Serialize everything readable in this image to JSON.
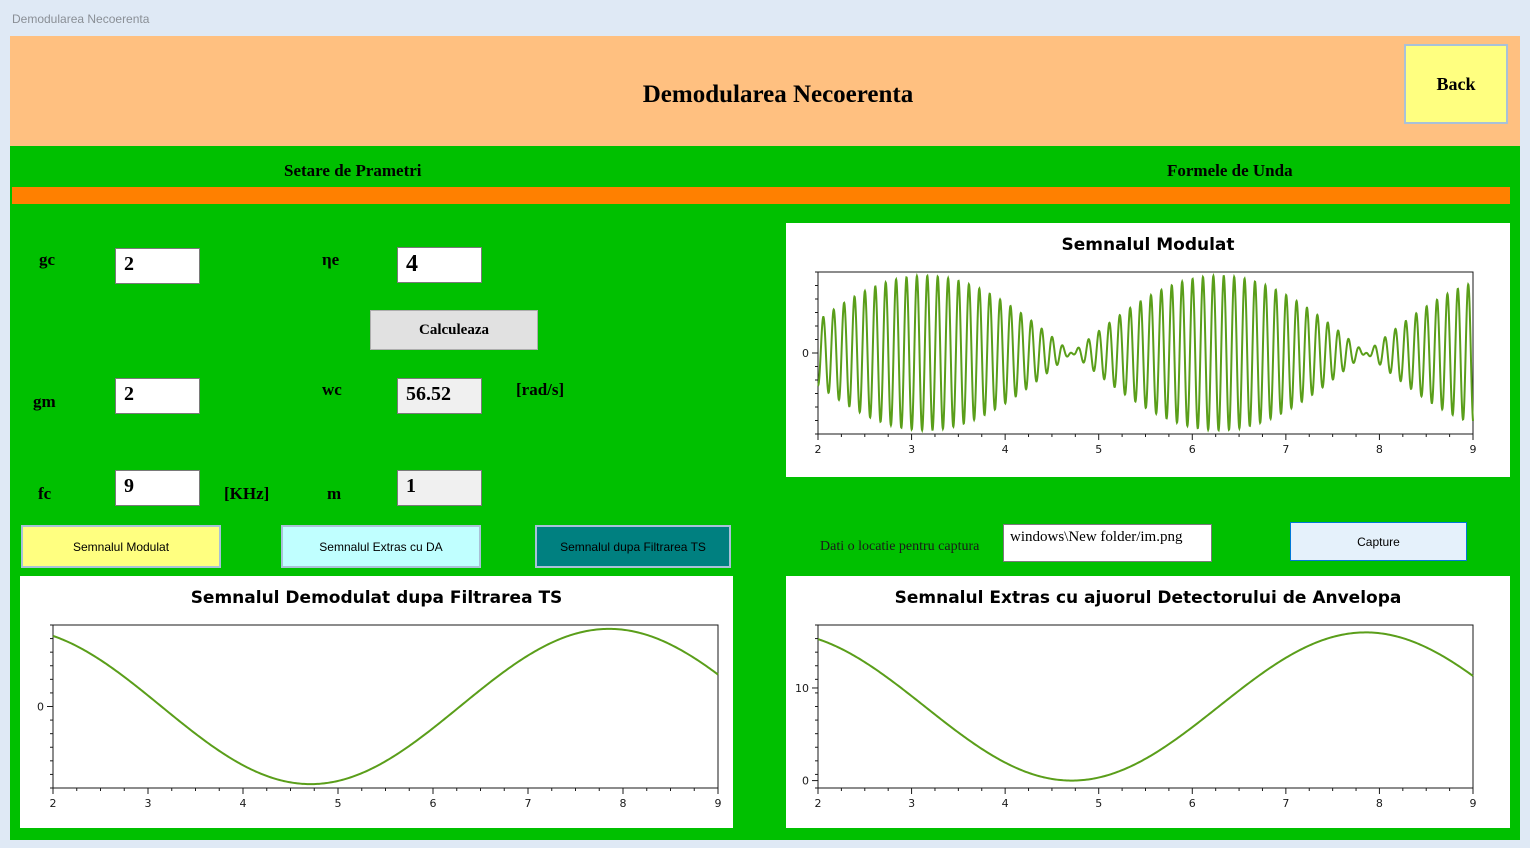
{
  "window": {
    "title": "Demodularea Necoerenta"
  },
  "header": {
    "title": "Demodularea Necoerenta",
    "back_label": "Back"
  },
  "sections": {
    "params": "Setare de Prametri",
    "waves": "Formele de Unda"
  },
  "params": {
    "gc": {
      "label": "gc",
      "value": "2"
    },
    "ne": {
      "label": "ηe",
      "value": "4"
    },
    "gm": {
      "label": "gm",
      "value": "2"
    },
    "wc": {
      "label": "wc",
      "value": "56.52",
      "unit": "[rad/s]"
    },
    "fc": {
      "label": "fc",
      "value": "9",
      "unit": "[KHz]"
    },
    "m": {
      "label": "m",
      "value": "1"
    },
    "calc_label": "Calculeaza"
  },
  "signal_buttons": {
    "modulat": "Semnalul Modulat",
    "extras": "Semnalul Extras cu DA",
    "filtrare": "Semnalul dupa Filtrarea TS"
  },
  "capture": {
    "label": "Dati o locatie pentru captura",
    "path": "windows\\New folder/im.png",
    "button": "Capture"
  },
  "colors": {
    "line": "#5a9e1a",
    "client": "#00c000",
    "header": "#ffc080",
    "bar": "#ff8000"
  },
  "chart_data": [
    {
      "type": "line",
      "title": "Semnalul Modulat",
      "x_ticks": [
        2,
        3,
        4,
        5,
        6,
        7,
        8,
        9
      ],
      "y_ticks": [
        0
      ],
      "xlim": [
        2,
        9
      ],
      "ylim": [
        -1.05,
        1.05
      ],
      "function": "cos(t) * cos(56.52 t)"
    },
    {
      "type": "line",
      "title": "Semnalul Demodulat dupa Filtrarea TS",
      "x_ticks": [
        2,
        3,
        4,
        5,
        6,
        7,
        8,
        9
      ],
      "y_ticks": [
        0
      ],
      "xlim": [
        2,
        9
      ],
      "ylim": [
        -1.05,
        1.05
      ],
      "function": "sin(t)"
    },
    {
      "type": "line",
      "title": "Semnalul Extras cu ajuorul Detectorului de Anvelopa",
      "x_ticks": [
        2,
        3,
        4,
        5,
        6,
        7,
        8,
        9
      ],
      "y_ticks": [
        0,
        10
      ],
      "xlim": [
        2,
        9
      ],
      "ylim": [
        -0.8,
        16.8
      ],
      "function": "8 + 8 sin(t)"
    }
  ]
}
